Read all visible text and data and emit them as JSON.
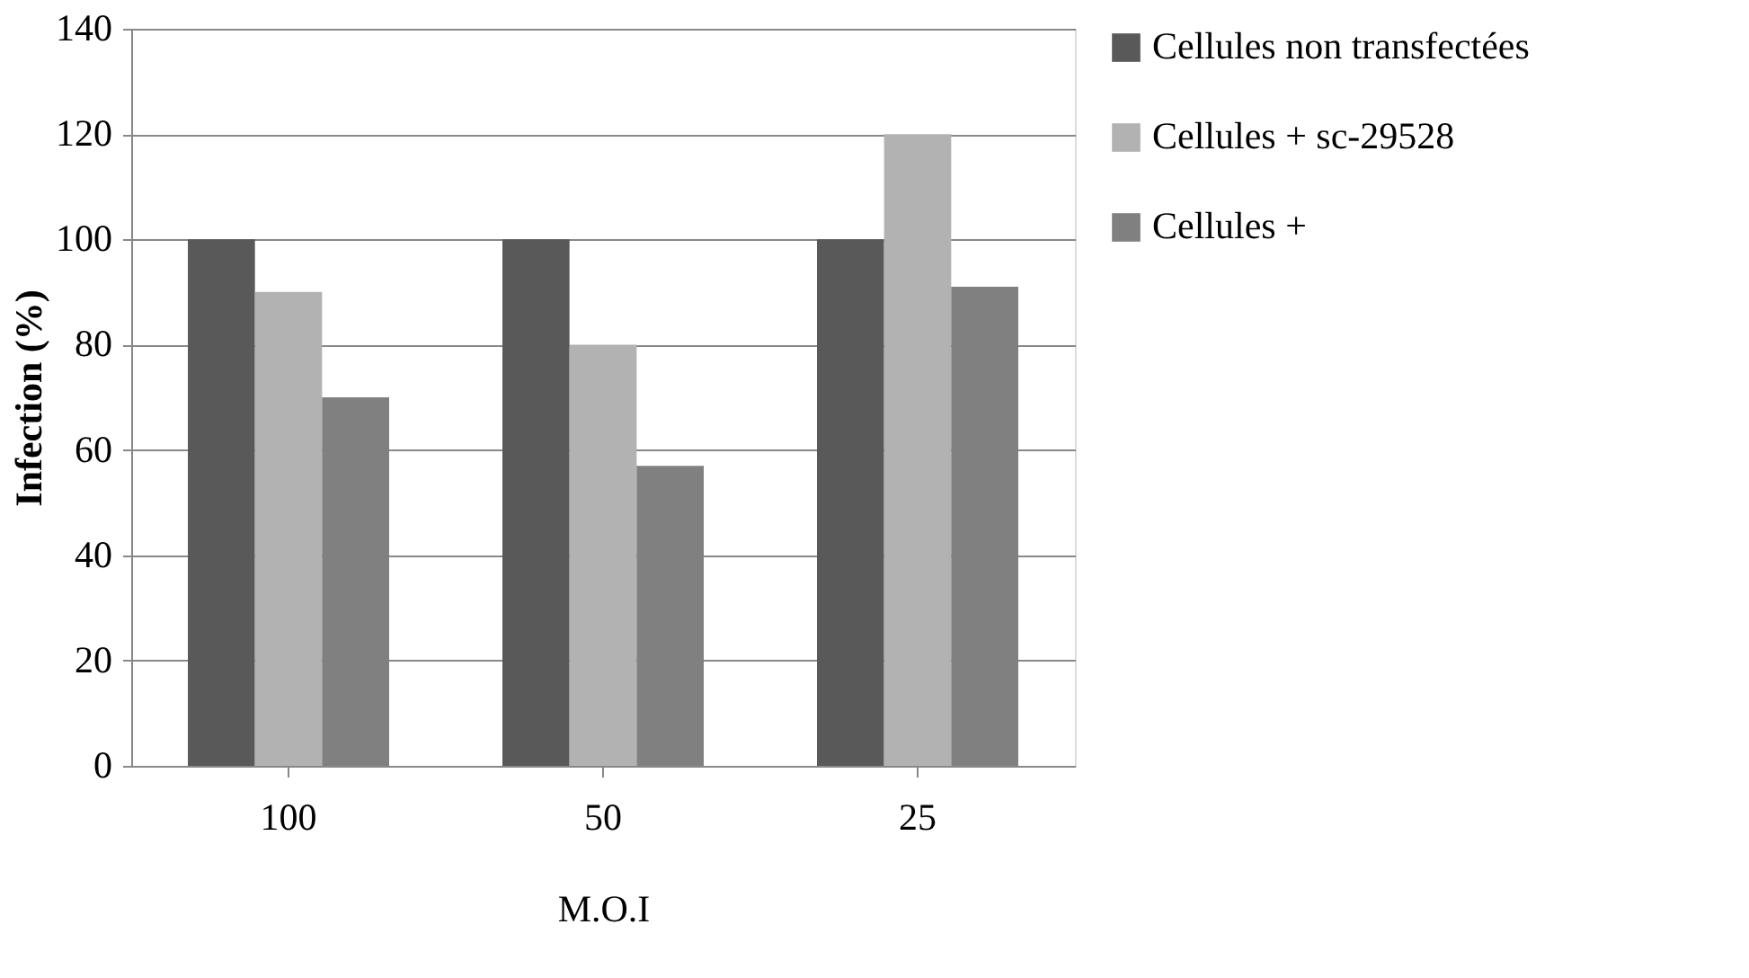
{
  "chart_data": {
    "type": "bar",
    "xlabel": "M.O.I",
    "ylabel": "Infection  (%)",
    "categories": [
      "100",
      "50",
      "25"
    ],
    "series": [
      {
        "name": "Cellules non transfectées",
        "color": "#595959",
        "values": [
          100,
          100,
          100
        ]
      },
      {
        "name": "Cellules + sc-29528",
        "color": "#b2b2b2",
        "values": [
          90,
          80,
          120
        ]
      },
      {
        "name": "Cellules +",
        "color": "#808080",
        "values": [
          70,
          57,
          91
        ]
      }
    ],
    "ylim": [
      0,
      140
    ],
    "yticks": [
      0,
      20,
      40,
      60,
      80,
      100,
      120,
      140
    ],
    "grid": "y",
    "legend": "right"
  }
}
